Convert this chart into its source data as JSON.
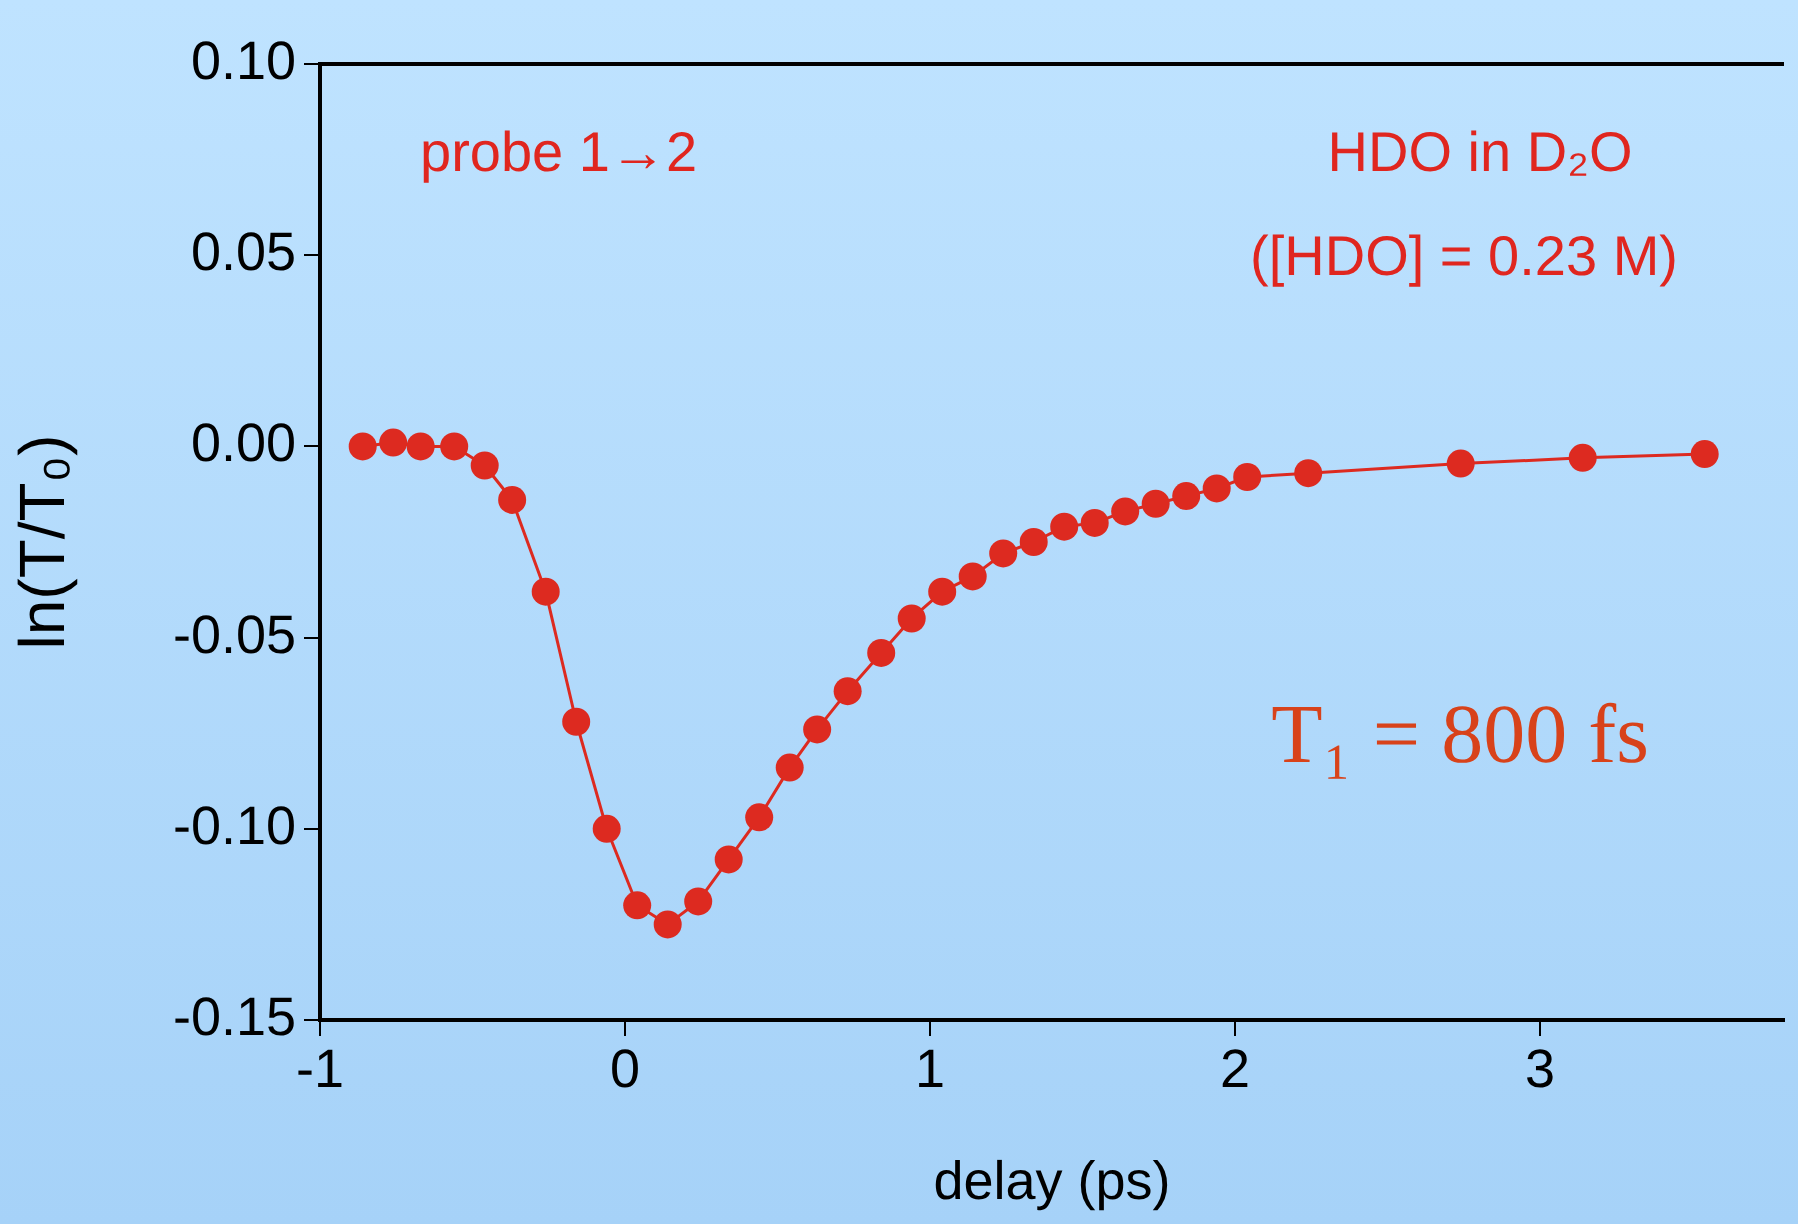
{
  "chart_data": {
    "type": "line",
    "xlabel": "delay (ps)",
    "ylabel": "ln(T/T₀)",
    "annotations": [
      "probe 1→2",
      "HDO in D₂O",
      "([HDO] = 0.23 M)",
      "T₁ = 800 fs"
    ],
    "x": [
      -0.86,
      -0.76,
      -0.67,
      -0.56,
      -0.46,
      -0.37,
      -0.26,
      -0.16,
      -0.06,
      0.04,
      0.14,
      0.24,
      0.34,
      0.44,
      0.54,
      0.63,
      0.73,
      0.84,
      0.94,
      1.04,
      1.14,
      1.24,
      1.34,
      1.44,
      1.54,
      1.64,
      1.74,
      1.84,
      1.94,
      2.04,
      2.24,
      2.74,
      3.14,
      3.54
    ],
    "series": [
      {
        "color": "#dd2a20",
        "values": [
          0.0,
          0.001,
          0.0,
          0.0,
          -0.005,
          -0.014,
          -0.038,
          -0.072,
          -0.1,
          -0.12,
          -0.125,
          -0.119,
          -0.108,
          -0.097,
          -0.084,
          -0.074,
          -0.064,
          -0.054,
          -0.045,
          -0.038,
          -0.034,
          -0.028,
          -0.025,
          -0.021,
          -0.02,
          -0.017,
          -0.015,
          -0.013,
          -0.011,
          -0.008,
          -0.007,
          -0.0045,
          -0.003,
          -0.002
        ]
      }
    ],
    "xlim": [
      -1,
      3.8
    ],
    "xticks": [
      -1,
      0,
      1,
      2,
      3
    ],
    "ylim": [
      -0.15,
      0.1
    ],
    "yticks": [
      {
        "value": -0.15,
        "label": "-0.15"
      },
      {
        "value": -0.1,
        "label": "-0.10"
      },
      {
        "value": -0.05,
        "label": "-0.05"
      },
      {
        "value": 0,
        "label": "0.00"
      },
      {
        "value": 0.05,
        "label": "0.05"
      },
      {
        "value": 0.1,
        "label": "0.10"
      }
    ],
    "marker": "circle",
    "line_style": "solid",
    "legend": false,
    "grid": false
  }
}
